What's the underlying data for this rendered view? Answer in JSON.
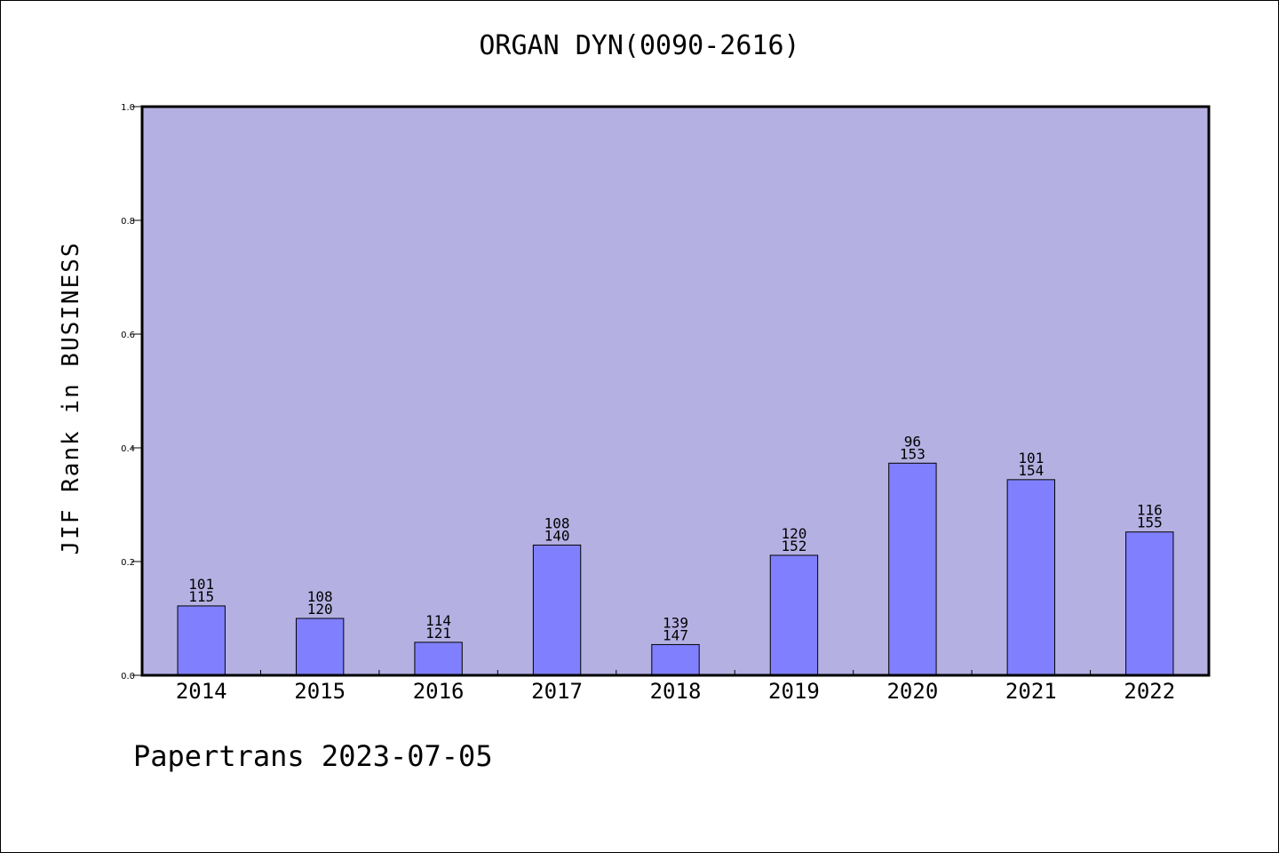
{
  "title": "ORGAN DYN(0090-2616)",
  "credit": "Papertrans 2023-07-05",
  "colors": {
    "plot_background": "#b5b0e2",
    "bar_fill": "#8080ff",
    "bar_stroke": "#000000",
    "axis": "#000000"
  },
  "chart_data": {
    "type": "bar",
    "title": "ORGAN DYN(0090-2616)",
    "xlabel": "",
    "ylabel": "JIF Rank in BUSINESS",
    "ylim": [
      0,
      1.0
    ],
    "yticks": [
      "0.0",
      "0.2",
      "0.4",
      "0.6",
      "0.8",
      "1.0"
    ],
    "grid": false,
    "categories": [
      "2014",
      "2015",
      "2016",
      "2017",
      "2018",
      "2019",
      "2020",
      "2021",
      "2022"
    ],
    "values": [
      0.122,
      0.1,
      0.058,
      0.229,
      0.054,
      0.211,
      0.373,
      0.344,
      0.252
    ],
    "rank": [
      "101",
      "108",
      "114",
      "108",
      "139",
      "120",
      "96",
      "101",
      "116"
    ],
    "total": [
      "115",
      "120",
      "121",
      "140",
      "147",
      "152",
      "153",
      "154",
      "155"
    ]
  }
}
